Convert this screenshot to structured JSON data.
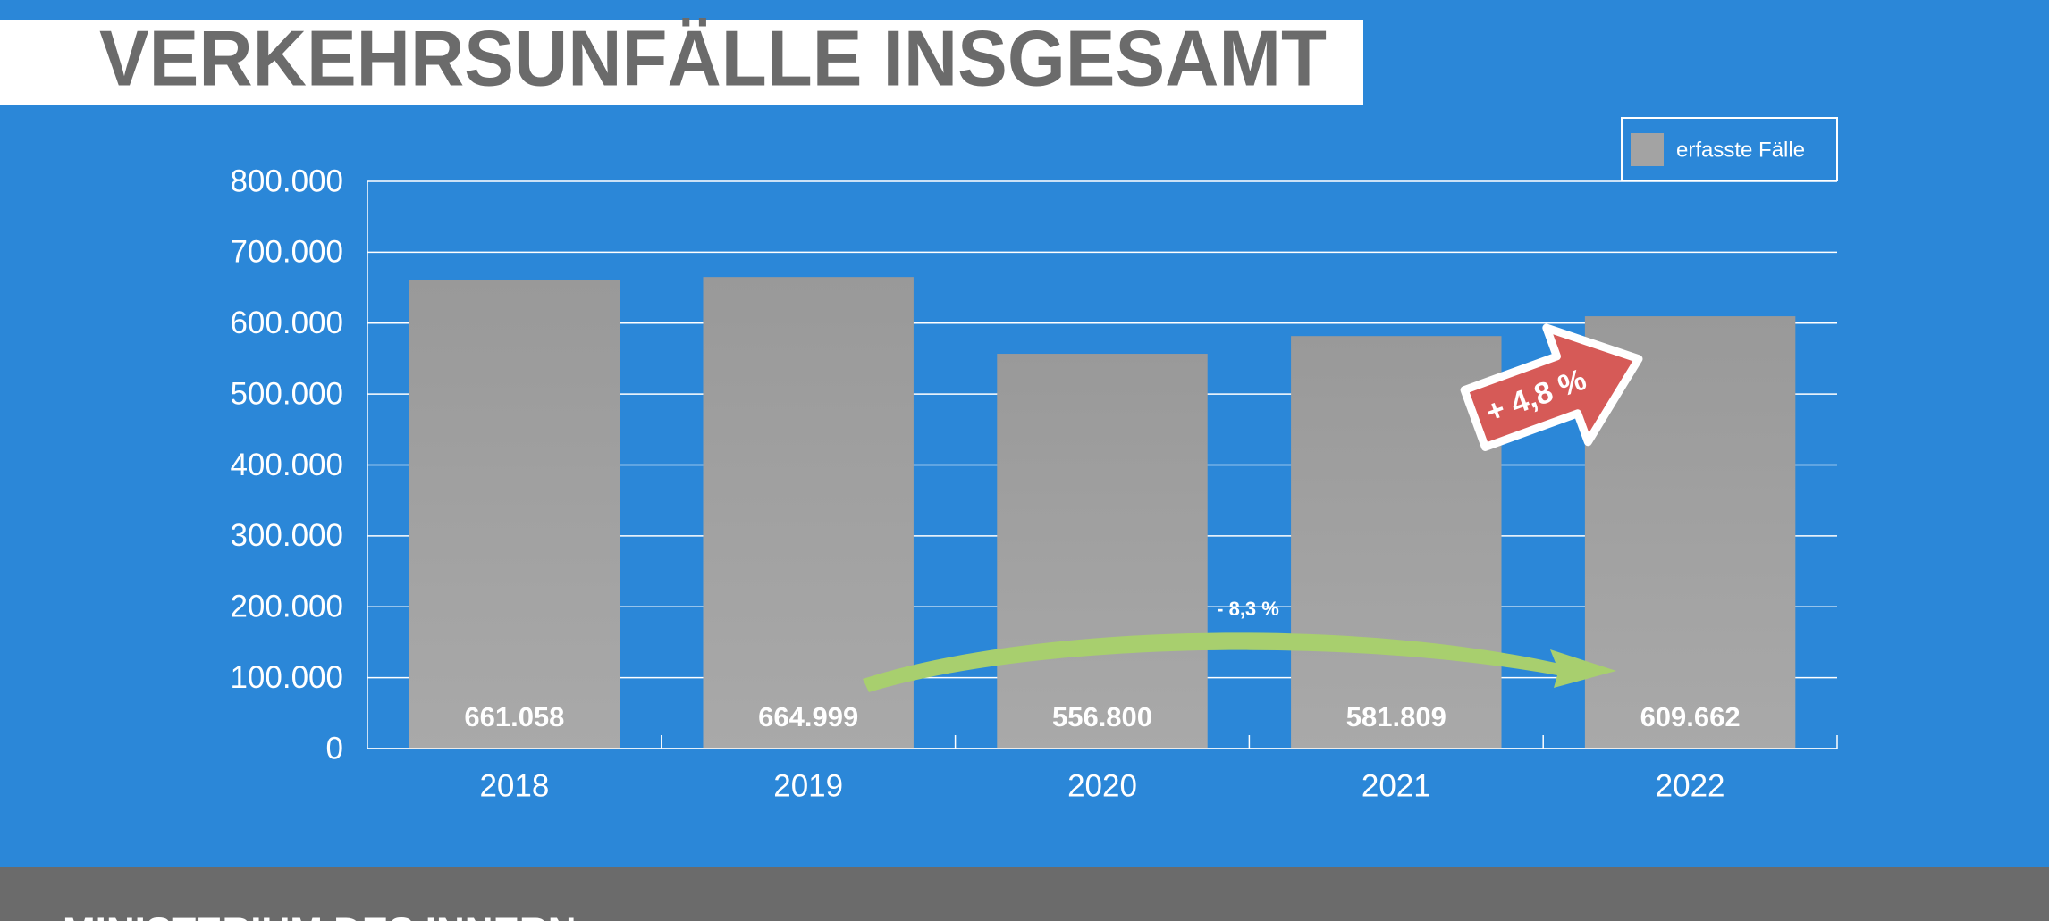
{
  "chart_data": {
    "type": "bar",
    "title": "VERKEHRSUNFÄLLE INSGESAMT",
    "categories": [
      "2018",
      "2019",
      "2020",
      "2021",
      "2022"
    ],
    "series": [
      {
        "name": "erfasste Fälle",
        "color": "#a3a3a3",
        "values": [
          661058,
          664999,
          556800,
          581809,
          609662
        ],
        "value_labels": [
          "661.058",
          "664.999",
          "556.800",
          "581.809",
          "609.662"
        ]
      }
    ],
    "ylim": [
      0,
      800000
    ],
    "yticks": [
      0,
      {
        "value": 100000,
        "label": "100.000"
      },
      {
        "value": 200000,
        "label": "200.000"
      },
      {
        "value": 300000,
        "label": "300.000"
      },
      {
        "value": 400000,
        "label": "400.000"
      },
      {
        "value": 500000,
        "label": "500.000"
      },
      {
        "value": 600000,
        "label": "600.000"
      },
      {
        "value": 700000,
        "label": "700.000"
      },
      {
        "value": 800000,
        "label": "800.000"
      }
    ],
    "grid": true,
    "legend": "top-right",
    "annotations": [
      "+ 4,8 %",
      "- 8,3 %"
    ]
  },
  "footer": {
    "text": "MINISTERIUM DES INNERN"
  }
}
